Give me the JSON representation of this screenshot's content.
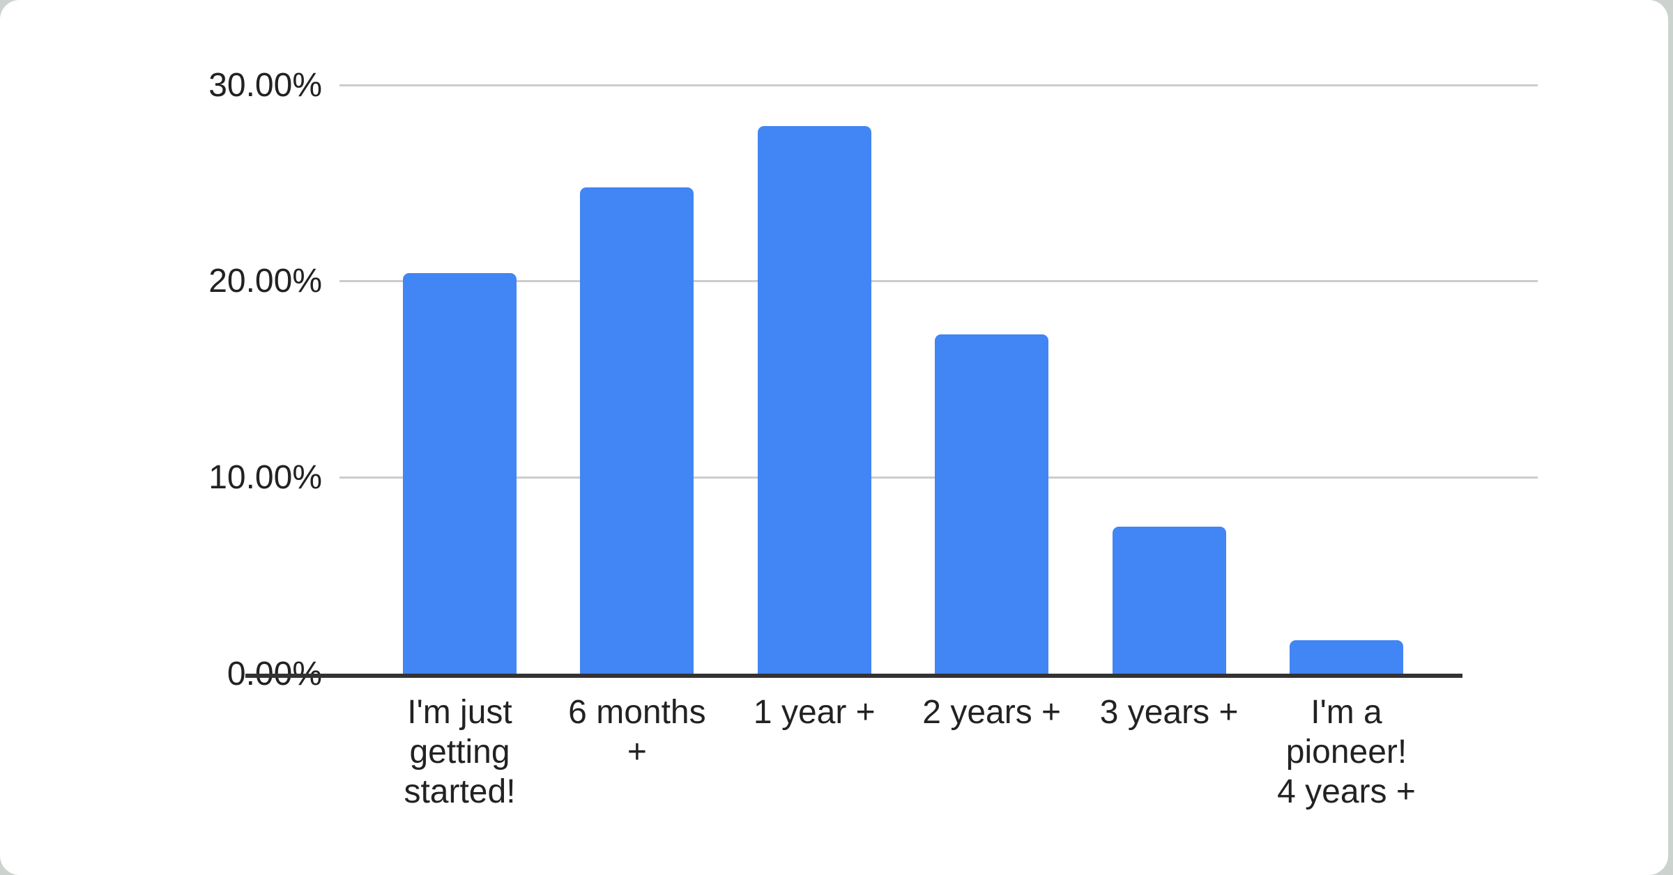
{
  "chart_data": {
    "type": "bar",
    "title": "",
    "xlabel": "",
    "ylabel": "",
    "categories": [
      "I'm just getting started!",
      "6 months +",
      "1 year +",
      "2 years +",
      "3 years +",
      "I'm a pioneer! 4 years +"
    ],
    "category_display": [
      "I'm just\ngetting\nstarted!",
      "6 months\n+",
      "1 year +",
      "2 years +",
      "3 years +",
      "I'm a\npioneer!\n4 years +"
    ],
    "values": [
      20.4,
      24.8,
      27.9,
      17.3,
      7.5,
      1.7
    ],
    "value_unit": "%",
    "ylim": [
      0,
      30
    ],
    "y_ticks": [
      {
        "value": 30,
        "label": "30.00%"
      },
      {
        "value": 20,
        "label": "20.00%"
      },
      {
        "value": 10,
        "label": "10.00%"
      },
      {
        "value": 0,
        "label": "0.00%"
      }
    ],
    "grid": true,
    "legend": "none",
    "colors": {
      "bar": "#4285F4",
      "gridline": "#cccccc",
      "axis_line": "#333333",
      "label_text": "#222222",
      "card_background": "#ffffff",
      "page_background": "#ccd3cf"
    }
  }
}
